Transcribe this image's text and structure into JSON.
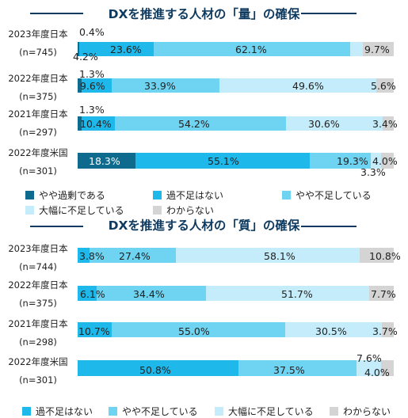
{
  "chart_data": [
    {
      "type": "bar",
      "stacked": true,
      "orientation": "horizontal",
      "title": "DXを推進する人材の「量」の確保",
      "categories": [
        [
          "2023年度日本",
          "(n=745)"
        ],
        [
          "2022年度日本",
          "(n=375)"
        ],
        [
          "2021年度日本",
          "(n=297)"
        ],
        [
          "2022年度米国",
          "(n=301)"
        ]
      ],
      "series": [
        {
          "name": "やや過剰である",
          "color": "#0e6b8e",
          "values": [
            0.4,
            1.3,
            1.3,
            18.3
          ]
        },
        {
          "name": "過不足はない",
          "color": "#1fb8eb",
          "values": [
            23.6,
            9.6,
            10.4,
            55.1
          ]
        },
        {
          "name": "やや不足している",
          "color": "#6ed4f2",
          "values": [
            62.1,
            33.9,
            54.2,
            19.3
          ]
        },
        {
          "name": "大幅に不足している",
          "color": "#c4ecfa",
          "values": [
            4.2,
            49.6,
            30.6,
            3.3
          ]
        },
        {
          "name": "わからない",
          "color": "#d4d4d4",
          "values": [
            9.7,
            5.6,
            3.4,
            4.0
          ]
        }
      ],
      "labels": [
        [
          "0.4%",
          "23.6%",
          "62.1%",
          "4.2%",
          "9.7%"
        ],
        [
          "1.3%",
          "9.6%",
          "33.9%",
          "49.6%",
          "5.6%"
        ],
        [
          "1.3%",
          "10.4%",
          "54.2%",
          "30.6%",
          "3.4%"
        ],
        [
          "18.3%",
          "55.1%",
          "19.3%",
          "3.3%",
          "4.0%"
        ]
      ],
      "xlim": [
        0,
        100
      ],
      "legend": "bottom"
    },
    {
      "type": "bar",
      "stacked": true,
      "orientation": "horizontal",
      "title": "DXを推進する人材の「質」の確保",
      "categories": [
        [
          "2023年度日本",
          "(n=744)"
        ],
        [
          "2022年度日本",
          "(n=375)"
        ],
        [
          "2021年度日本",
          "(n=298)"
        ],
        [
          "2022年度米国",
          "(n=301)"
        ]
      ],
      "series": [
        {
          "name": "過不足はない",
          "color": "#1fb8eb",
          "values": [
            3.8,
            6.1,
            10.7,
            50.8
          ]
        },
        {
          "name": "やや不足している",
          "color": "#6ed4f2",
          "values": [
            27.4,
            34.4,
            55.0,
            37.5
          ]
        },
        {
          "name": "大幅に不足している",
          "color": "#c4ecfa",
          "values": [
            58.1,
            51.7,
            30.5,
            7.6
          ]
        },
        {
          "name": "わからない",
          "color": "#d4d4d4",
          "values": [
            10.8,
            7.7,
            3.7,
            4.0
          ]
        }
      ],
      "labels": [
        [
          "3.8%",
          "27.4%",
          "58.1%",
          "10.8%"
        ],
        [
          "6.1%",
          "34.4%",
          "51.7%",
          "7.7%"
        ],
        [
          "10.7%",
          "55.0%",
          "30.5%",
          "3.7%"
        ],
        [
          "50.8%",
          "37.5%",
          "7.6%",
          "4.0%"
        ]
      ],
      "xlim": [
        0,
        100
      ],
      "legend": "bottom"
    }
  ]
}
